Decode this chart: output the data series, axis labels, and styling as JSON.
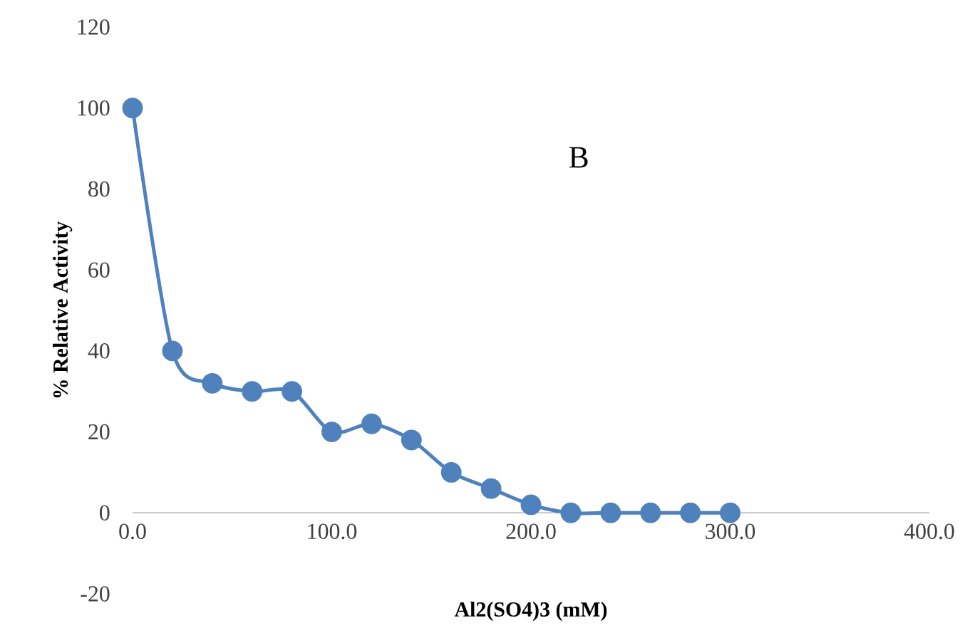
{
  "chart_data": {
    "type": "line",
    "xlabel": "Al2(SO4)3 (mM)",
    "ylabel": "% Relative Activity",
    "annotations": [
      "B"
    ],
    "x": [
      0,
      20,
      40,
      60,
      80,
      100,
      120,
      140,
      160,
      180,
      200,
      220,
      240,
      260,
      280,
      300
    ],
    "series": [
      {
        "color": "#4f81bd",
        "values": [
          100,
          40,
          32,
          30,
          30,
          20,
          22,
          18,
          10,
          6,
          2,
          0,
          0,
          0,
          0,
          0
        ]
      }
    ],
    "xlim": [
      0,
      400
    ],
    "xticks": [
      {
        "value": 0,
        "label": "0.0"
      },
      {
        "value": 100,
        "label": "100.0"
      },
      {
        "value": 200,
        "label": "200.0"
      },
      {
        "value": 300,
        "label": "300.0"
      },
      {
        "value": 400,
        "label": "400.0"
      }
    ],
    "ylim": [
      -20,
      120
    ],
    "yticks": [
      -20,
      0,
      20,
      40,
      60,
      80,
      100,
      120
    ],
    "grid": false,
    "marker": "circle",
    "line_style": "solid"
  }
}
